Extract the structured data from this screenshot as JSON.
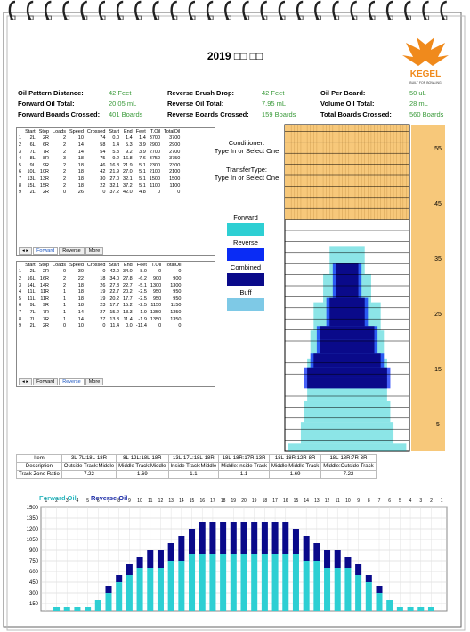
{
  "header": {
    "title": "2019 □□ □□",
    "logo": "KEGEL",
    "logo_tagline": "BUILT FOR BOWLING",
    "info": [
      [
        "Oil Pattern Distance:",
        "42 Feet"
      ],
      [
        "Reverse Brush Drop:",
        "42 Feet"
      ],
      [
        "Oil Per Board:",
        "50 uL"
      ],
      [
        "Forward Oil Total:",
        "20.05 mL"
      ],
      [
        "Reverse Oil Total:",
        "7.95 mL"
      ],
      [
        "Volume Oil Total:",
        "28 mL"
      ],
      [
        "Forward Boards Crossed:",
        "401 Boards"
      ],
      [
        "Reverse Boards Crossed:",
        "159 Boards"
      ],
      [
        "Total Boards Crossed:",
        "560 Boards"
      ]
    ]
  },
  "forward_table": {
    "columns": [
      "",
      "Start",
      "Stop",
      "Loads",
      "Speed",
      "Crossed",
      "Start",
      "End",
      "Feet",
      "T.Oil",
      "TotalOil"
    ],
    "rows": [
      [
        "1",
        "2L",
        "2R",
        "2",
        "10",
        "74",
        "0.0",
        "1.4",
        "1.4",
        "3700",
        "3700"
      ],
      [
        "2",
        "6L",
        "6R",
        "2",
        "14",
        "58",
        "1.4",
        "5.3",
        "3.9",
        "2900",
        "2900"
      ],
      [
        "3",
        "7L",
        "7R",
        "2",
        "14",
        "54",
        "5.3",
        "9.2",
        "3.9",
        "2700",
        "2700"
      ],
      [
        "4",
        "8L",
        "8R",
        "3",
        "18",
        "75",
        "9.2",
        "16.8",
        "7.6",
        "3750",
        "3750"
      ],
      [
        "5",
        "9L",
        "9R",
        "2",
        "18",
        "46",
        "16.8",
        "21.9",
        "5.1",
        "2300",
        "2300"
      ],
      [
        "6",
        "10L",
        "10R",
        "2",
        "18",
        "42",
        "21.9",
        "27.0",
        "5.1",
        "2100",
        "2100"
      ],
      [
        "7",
        "13L",
        "13R",
        "2",
        "18",
        "30",
        "27.0",
        "32.1",
        "5.1",
        "1500",
        "1500"
      ],
      [
        "8",
        "15L",
        "15R",
        "2",
        "18",
        "22",
        "32.1",
        "37.2",
        "5.1",
        "1100",
        "1100"
      ],
      [
        "9",
        "2L",
        "2R",
        "0",
        "26",
        "0",
        "37.2",
        "42.0",
        "4.8",
        "0",
        "0"
      ]
    ]
  },
  "reverse_table": {
    "columns": [
      "",
      "Start",
      "Stop",
      "Loads",
      "Speed",
      "Crossed",
      "Start",
      "End",
      "Feet",
      "T.Oil",
      "TotalOil"
    ],
    "rows": [
      [
        "1",
        "2L",
        "2R",
        "0",
        "30",
        "0",
        "42.0",
        "34.0",
        "-8.0",
        "0",
        "0"
      ],
      [
        "2",
        "16L",
        "16R",
        "2",
        "22",
        "18",
        "34.0",
        "27.8",
        "-6.2",
        "900",
        "900"
      ],
      [
        "3",
        "14L",
        "14R",
        "2",
        "18",
        "26",
        "27.8",
        "22.7",
        "-5.1",
        "1300",
        "1300"
      ],
      [
        "4",
        "11L",
        "11R",
        "1",
        "18",
        "19",
        "22.7",
        "20.2",
        "-2.5",
        "950",
        "950"
      ],
      [
        "5",
        "11L",
        "11R",
        "1",
        "18",
        "19",
        "20.2",
        "17.7",
        "-2.5",
        "950",
        "950"
      ],
      [
        "6",
        "9L",
        "9R",
        "1",
        "18",
        "23",
        "17.7",
        "15.2",
        "-2.5",
        "1150",
        "1150"
      ],
      [
        "7",
        "7L",
        "7R",
        "1",
        "14",
        "27",
        "15.2",
        "13.3",
        "-1.9",
        "1350",
        "1350"
      ],
      [
        "8",
        "7L",
        "7R",
        "1",
        "14",
        "27",
        "13.3",
        "11.4",
        "-1.9",
        "1350",
        "1350"
      ],
      [
        "9",
        "2L",
        "2R",
        "0",
        "10",
        "0",
        "11.4",
        "0.0",
        "-11.4",
        "0",
        "0"
      ]
    ]
  },
  "tabs": [
    "Forward",
    "Reverse",
    "More"
  ],
  "conditioner": [
    "Conditioner:",
    "Type In or Select One"
  ],
  "transfer": [
    "TransferType:",
    "Type In or Select One"
  ],
  "legend": [
    {
      "name": "Forward",
      "color": "#2ecfd3"
    },
    {
      "name": "Reverse",
      "color": "#0a2cf5"
    },
    {
      "name": "Combined",
      "color": "#0a0a8a"
    },
    {
      "name": "Buff",
      "color": "#7ec9e6"
    }
  ],
  "lane_feet_labels": [
    55,
    45,
    35,
    25,
    15,
    5
  ],
  "zone_table": {
    "rows": [
      [
        "Item",
        "3L-7L:18L-18R",
        "8L-12L:18L-18R",
        "13L-17L:18L-18R",
        "18L-18R:17R-13R",
        "18L-18R:12R-8R",
        "18L-18R:7R-3R"
      ],
      [
        "Description",
        "Outside Track:Middle",
        "Middle Track:Middle",
        "Inside Track:Middle",
        "Middle:Inside Track",
        "Middle:Middle Track",
        "Middle:Outside Track"
      ],
      [
        "Track Zone Ratio",
        "7.22",
        "1.69",
        "1.1",
        "1.1",
        "1.69",
        "7.22"
      ]
    ]
  },
  "chart_data": {
    "type": "bar",
    "stacked": true,
    "categories": [
      "1",
      "2",
      "3",
      "4",
      "5",
      "6",
      "7",
      "8",
      "9",
      "10",
      "11",
      "12",
      "13",
      "14",
      "15",
      "16",
      "17",
      "18",
      "19",
      "20",
      "19",
      "18",
      "17",
      "16",
      "15",
      "14",
      "13",
      "12",
      "11",
      "10",
      "9",
      "8",
      "7",
      "6",
      "5",
      "4",
      "3",
      "2",
      "1"
    ],
    "series": [
      {
        "name": "Forward Oil",
        "color": "#2ecfd3",
        "values": [
          0,
          100,
          100,
          100,
          100,
          200,
          300,
          450,
          550,
          650,
          650,
          650,
          750,
          750,
          850,
          850,
          850,
          850,
          850,
          850,
          850,
          850,
          850,
          850,
          850,
          750,
          750,
          650,
          650,
          650,
          550,
          450,
          300,
          200,
          100,
          100,
          100,
          100,
          0
        ]
      },
      {
        "name": "Reverse Oil",
        "color": "#0a0a8a",
        "values": [
          0,
          0,
          0,
          0,
          0,
          0,
          100,
          100,
          150,
          150,
          250,
          250,
          250,
          350,
          350,
          450,
          450,
          450,
          450,
          450,
          450,
          450,
          450,
          450,
          350,
          350,
          250,
          250,
          250,
          150,
          150,
          100,
          100,
          0,
          0,
          0,
          0,
          0,
          0
        ]
      }
    ],
    "ylim": [
      50,
      1500
    ],
    "yticks": [
      150,
      300,
      450,
      600,
      750,
      900,
      1050,
      1200,
      1350,
      1500
    ],
    "grid": true
  }
}
